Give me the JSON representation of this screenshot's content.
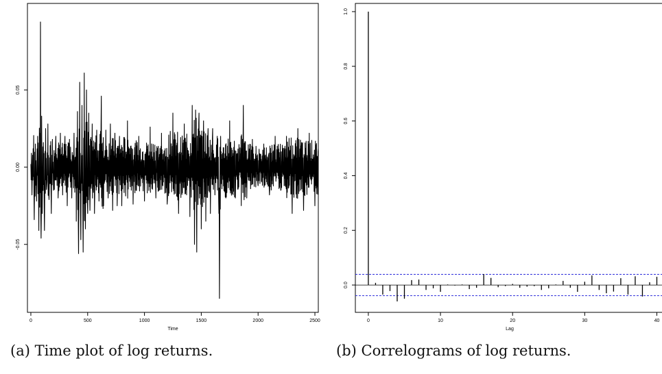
{
  "chart_data": [
    {
      "type": "line",
      "caption": "(a) Time plot of log returns.",
      "xlabel": "Time",
      "ylabel": "",
      "xlim": [
        -30,
        2530
      ],
      "ylim": [
        -0.094,
        0.106
      ],
      "x_ticks": [
        0,
        500,
        1000,
        1500,
        2000,
        2500
      ],
      "x_tick_labels": [
        "0",
        "500",
        "1000",
        "1500",
        "2000",
        "2500"
      ],
      "y_ticks": [
        -0.05,
        0.0,
        0.05
      ],
      "y_tick_labels": [
        "-0.05",
        "0.00",
        "0.05"
      ],
      "series": [
        {
          "x": [
            0,
            10,
            20,
            30,
            40,
            50,
            60,
            70,
            80,
            85,
            90,
            95,
            100,
            110,
            120,
            130,
            140,
            150,
            160,
            170,
            180,
            190,
            200,
            220,
            240,
            260,
            280,
            300,
            320,
            340,
            360,
            380,
            400,
            410,
            420,
            430,
            440,
            450,
            460,
            470,
            480,
            490,
            500,
            510,
            520,
            540,
            560,
            580,
            600,
            620,
            640,
            660,
            680,
            700,
            720,
            740,
            760,
            780,
            800,
            850,
            900,
            950,
            1000,
            1050,
            1100,
            1150,
            1200,
            1250,
            1300,
            1350,
            1400,
            1420,
            1440,
            1450,
            1460,
            1480,
            1500,
            1520,
            1540,
            1560,
            1580,
            1600,
            1620,
            1640,
            1655,
            1660,
            1670,
            1700,
            1750,
            1800,
            1850,
            1870,
            1900,
            1950,
            2000,
            2050,
            2100,
            2150,
            2200,
            2250,
            2300,
            2350,
            2400,
            2450,
            2500,
            2530
          ],
          "values": [
            0.002,
            -0.018,
            0.012,
            -0.034,
            0.015,
            -0.022,
            0.02,
            -0.041,
            0.022,
            0.094,
            -0.046,
            0.033,
            -0.03,
            0.016,
            -0.041,
            0.025,
            -0.012,
            0.028,
            -0.021,
            0.014,
            -0.03,
            0.018,
            -0.015,
            0.02,
            -0.02,
            0.022,
            -0.018,
            0.02,
            -0.025,
            0.018,
            -0.02,
            0.022,
            -0.035,
            0.036,
            -0.056,
            0.055,
            -0.047,
            0.04,
            -0.055,
            0.061,
            -0.04,
            0.05,
            -0.03,
            0.035,
            -0.028,
            0.028,
            -0.03,
            0.024,
            -0.022,
            0.046,
            -0.025,
            0.024,
            -0.02,
            0.028,
            -0.028,
            0.022,
            -0.025,
            0.02,
            -0.025,
            0.03,
            -0.024,
            0.02,
            -0.022,
            0.026,
            -0.02,
            0.022,
            -0.024,
            0.035,
            -0.03,
            0.028,
            -0.032,
            0.04,
            -0.05,
            0.037,
            -0.055,
            0.035,
            -0.04,
            0.03,
            -0.035,
            0.025,
            -0.03,
            0.025,
            -0.018,
            0.02,
            -0.03,
            -0.085,
            0.02,
            -0.015,
            0.03,
            -0.02,
            0.02,
            0.04,
            -0.02,
            0.018,
            -0.012,
            0.015,
            -0.018,
            0.02,
            -0.015,
            0.02,
            -0.03,
            0.025,
            -0.028,
            0.022,
            -0.025,
            0.012
          ]
        }
      ]
    },
    {
      "type": "bar",
      "caption": "(b) Correlograms of log returns.",
      "xlabel": "Lag",
      "ylabel": "",
      "xlim": [
        -1.8,
        41
      ],
      "ylim": [
        -0.1,
        1.03
      ],
      "x_ticks": [
        0,
        10,
        20,
        30,
        40
      ],
      "x_tick_labels": [
        "0",
        "10",
        "20",
        "30",
        "40"
      ],
      "y_ticks": [
        0.0,
        0.2,
        0.4,
        0.6,
        0.8,
        1.0
      ],
      "y_tick_labels": [
        "0.0",
        "0.2",
        "0.4",
        "0.6",
        "0.8",
        "1.0"
      ],
      "confidence_band": 0.039,
      "lags": [
        0,
        1,
        2,
        3,
        4,
        5,
        6,
        7,
        8,
        9,
        10,
        11,
        12,
        13,
        14,
        15,
        16,
        17,
        18,
        19,
        20,
        21,
        22,
        23,
        24,
        25,
        26,
        27,
        28,
        29,
        30,
        31,
        32,
        33,
        34,
        35,
        36,
        37,
        38,
        39,
        40
      ],
      "values": [
        1.0,
        0.008,
        -0.035,
        -0.022,
        -0.06,
        -0.05,
        0.018,
        0.02,
        -0.018,
        -0.012,
        -0.025,
        0.002,
        -0.002,
        0.002,
        -0.015,
        -0.01,
        0.04,
        0.026,
        -0.008,
        -0.004,
        0.004,
        -0.01,
        -0.006,
        -0.004,
        -0.018,
        -0.012,
        0.002,
        0.015,
        -0.01,
        -0.025,
        0.012,
        0.035,
        -0.018,
        -0.03,
        -0.024,
        0.025,
        -0.035,
        0.032,
        -0.042,
        0.01,
        0.03
      ]
    }
  ]
}
